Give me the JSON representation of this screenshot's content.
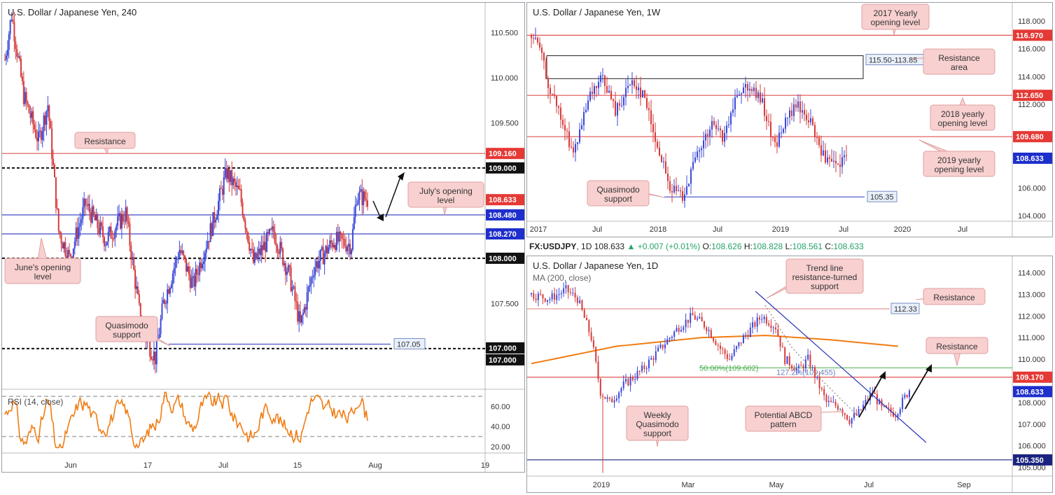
{
  "top_bar": {
    "symbol": "FX:USDJPY",
    "interval": "1D",
    "last": "108.633",
    "change": "+0.007 (+0.01%)",
    "o_label": "O:",
    "o": "108.626",
    "h_label": "H:",
    "h": "108.828",
    "l_label": "L:",
    "l": "108.561",
    "c_label": "C:",
    "c": "108.633"
  },
  "colors": {
    "bull": "#3b48d8",
    "bear": "#d63a3a",
    "resistance": "#e05252",
    "support": "#2b35b8",
    "rsi": "#f07c12",
    "ma": "#f07c12",
    "fib": "#4caf50",
    "callout_bg": "#f8d0d0",
    "callout_border": "#e0a0a0",
    "price_tag_red": "#e53935",
    "price_tag_blue": "#1e2fcb",
    "price_tag_black": "#111111"
  },
  "chart_data": [
    {
      "id": "h4",
      "type": "candlestick",
      "title": "U.S. Dollar / Japanese Yen, 240",
      "ylim": [
        106.55,
        110.75
      ],
      "y_ticks": [
        "110.500",
        "110.000",
        "109.500",
        "107.500"
      ],
      "x_ticks": [
        "Jun",
        "17",
        "Jul",
        "15",
        "Aug",
        "19"
      ],
      "anchors": [
        [
          0,
          110.2
        ],
        [
          5,
          110.7
        ],
        [
          14,
          109.8
        ],
        [
          25,
          109.3
        ],
        [
          32,
          109.7
        ],
        [
          40,
          108.3
        ],
        [
          48,
          108.0
        ],
        [
          60,
          108.6
        ],
        [
          75,
          108.2
        ],
        [
          90,
          108.5
        ],
        [
          102,
          107.2
        ],
        [
          112,
          106.9
        ],
        [
          118,
          107.5
        ],
        [
          130,
          108.1
        ],
        [
          140,
          107.7
        ],
        [
          155,
          108.4
        ],
        [
          165,
          108.95
        ],
        [
          175,
          108.7
        ],
        [
          185,
          107.95
        ],
        [
          200,
          108.3
        ],
        [
          212,
          107.8
        ],
        [
          220,
          107.25
        ],
        [
          230,
          107.9
        ],
        [
          245,
          108.2
        ],
        [
          258,
          108.15
        ],
        [
          262,
          108.7
        ],
        [
          270,
          108.65
        ]
      ],
      "levels": [
        {
          "value": 109.16,
          "label": "109.160",
          "kind": "resistance"
        },
        {
          "value": 109.0,
          "label": "109.000",
          "kind": "round"
        },
        {
          "value": 108.633,
          "label": "108.633",
          "kind": "price"
        },
        {
          "value": 108.48,
          "label": "108.480",
          "kind": "support"
        },
        {
          "value": 108.27,
          "label": "108.270",
          "kind": "support"
        },
        {
          "value": 108.0,
          "label": "108.000",
          "kind": "round"
        },
        {
          "value": 107.0,
          "label": "107.000",
          "kind": "round"
        },
        {
          "value": 107.05,
          "label": "107.05",
          "kind": "quasimodo"
        }
      ],
      "extra_tag": "107.000",
      "annotations": [
        {
          "text": "Resistance"
        },
        {
          "text": "July's opening level"
        },
        {
          "text": "June's opening level"
        },
        {
          "text": "Quasimodo support"
        }
      ],
      "rsi": {
        "label": "RSI (14, close)",
        "ylim": [
          15,
          75
        ],
        "y_ticks": [
          "60.00",
          "40.00",
          "20.00"
        ],
        "bands": [
          70,
          30
        ]
      }
    },
    {
      "id": "w1",
      "type": "candlestick",
      "title": "U.S. Dollar / Japanese Yen, 1W",
      "ylim": [
        103.6,
        118.9
      ],
      "y_ticks": [
        "118.000",
        "116.000",
        "114.000",
        "112.000",
        "108.000",
        "106.000",
        "104.000"
      ],
      "x_ticks": [
        "2017",
        "Jul",
        "2018",
        "Jul",
        "2019",
        "Jul",
        "2020",
        "Jul"
      ],
      "anchors": [
        [
          0,
          117.0
        ],
        [
          4,
          116.0
        ],
        [
          8,
          113.5
        ],
        [
          14,
          111.0
        ],
        [
          20,
          108.5
        ],
        [
          28,
          112.5
        ],
        [
          34,
          114.0
        ],
        [
          40,
          111.5
        ],
        [
          48,
          113.8
        ],
        [
          54,
          112.5
        ],
        [
          60,
          109.0
        ],
        [
          66,
          106.0
        ],
        [
          72,
          105.5
        ],
        [
          78,
          108.0
        ],
        [
          86,
          110.5
        ],
        [
          92,
          109.5
        ],
        [
          98,
          113.0
        ],
        [
          104,
          113.5
        ],
        [
          110,
          112.0
        ],
        [
          116,
          109.0
        ],
        [
          120,
          110.5
        ],
        [
          126,
          112.0
        ],
        [
          132,
          111.0
        ],
        [
          136,
          109.5
        ],
        [
          140,
          108.0
        ],
        [
          146,
          107.5
        ],
        [
          150,
          108.3
        ]
      ],
      "levels": [
        {
          "value": 116.97,
          "label": "116.970",
          "kind": "resistance"
        },
        {
          "value": 112.65,
          "label": "112.650",
          "kind": "resistance"
        },
        {
          "value": 109.68,
          "label": "109.680",
          "kind": "resistance"
        },
        {
          "value": 108.633,
          "label": "108.633",
          "kind": "price"
        },
        {
          "value": 105.35,
          "label": "105.35",
          "kind": "quasimodo"
        }
      ],
      "zone": {
        "label": "115.50-113.85",
        "top": 115.5,
        "bottom": 113.85
      },
      "annotations": [
        {
          "text": "2017 Yearly opening level"
        },
        {
          "text": "Resistance area"
        },
        {
          "text": "2018 yearly opening level"
        },
        {
          "text": "2019 yearly opening level"
        },
        {
          "text": "Quasimodo support"
        }
      ]
    },
    {
      "id": "d1",
      "type": "candlestick",
      "title": "U.S. Dollar / Japanese Yen, 1D",
      "subtitle": "MA (200, close)",
      "ylim": [
        104.6,
        114.5
      ],
      "y_ticks": [
        "114.000",
        "113.000",
        "112.000",
        "111.000",
        "110.000",
        "108.000",
        "107.000",
        "106.000",
        "105.000"
      ],
      "x_ticks": [
        "2019",
        "Mar",
        "May",
        "Jul",
        "Sep"
      ],
      "anchors": [
        [
          0,
          113.0
        ],
        [
          8,
          112.8
        ],
        [
          15,
          113.2
        ],
        [
          20,
          112.8
        ],
        [
          26,
          111.0
        ],
        [
          30,
          108.5
        ],
        [
          34,
          108.0
        ],
        [
          40,
          108.8
        ],
        [
          48,
          109.5
        ],
        [
          56,
          110.5
        ],
        [
          64,
          111.5
        ],
        [
          70,
          112.0
        ],
        [
          76,
          111.5
        ],
        [
          82,
          110.5
        ],
        [
          86,
          110.0
        ],
        [
          92,
          111.0
        ],
        [
          100,
          112.0
        ],
        [
          106,
          111.5
        ],
        [
          110,
          110.0
        ],
        [
          116,
          109.5
        ],
        [
          120,
          110.0
        ],
        [
          128,
          108.0
        ],
        [
          134,
          107.8
        ],
        [
          138,
          107.2
        ],
        [
          142,
          107.5
        ],
        [
          148,
          108.5
        ],
        [
          152,
          107.7
        ],
        [
          158,
          107.5
        ],
        [
          164,
          108.6
        ]
      ],
      "ma": [
        [
          0,
          109.8
        ],
        [
          40,
          110.6
        ],
        [
          80,
          111.0
        ],
        [
          110,
          111.1
        ],
        [
          140,
          110.9
        ],
        [
          172,
          110.6
        ]
      ],
      "levels": [
        {
          "value": 112.33,
          "label": "112.33",
          "kind": "resistance"
        },
        {
          "value": 109.17,
          "label": "109.170",
          "kind": "resistance"
        },
        {
          "value": 108.633,
          "label": "108.633",
          "kind": "price"
        },
        {
          "value": 105.35,
          "label": "105.350",
          "kind": "support"
        }
      ],
      "fib": {
        "label": "50.00%(109.602)",
        "value": 109.602,
        "ext_label": "127.2%(109.455)"
      },
      "annotations": [
        {
          "text": "Trend line resistance-turned support"
        },
        {
          "text": "Resistance"
        },
        {
          "text": "Resistance"
        },
        {
          "text": "Potential ABCD pattern"
        },
        {
          "text": "Weekly Quasimodo support"
        }
      ]
    }
  ]
}
